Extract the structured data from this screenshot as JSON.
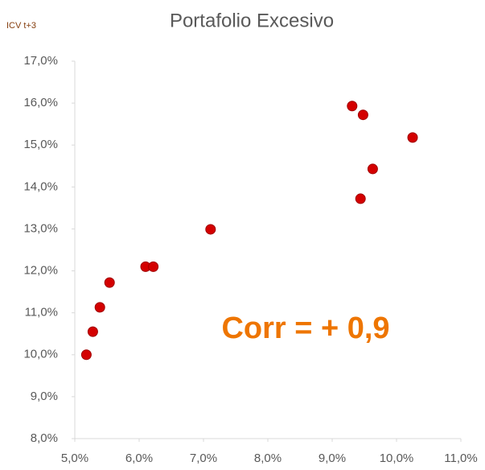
{
  "chart_data": {
    "type": "scatter",
    "title": "Portafolio Excesivo",
    "y_label": "ICV t+3",
    "annotation": "Corr = + 0,9",
    "color": "#d40000",
    "annotation_color": "#ee7500",
    "grid": false,
    "x": [
      5.18,
      5.28,
      5.39,
      5.54,
      6.1,
      6.22,
      7.11,
      9.31,
      9.48,
      10.25,
      9.63,
      9.44
    ],
    "values": [
      10.0,
      10.55,
      11.13,
      11.72,
      12.1,
      12.1,
      12.99,
      15.93,
      15.72,
      15.18,
      14.43,
      13.72
    ],
    "xlim": [
      5,
      11
    ],
    "ylim": [
      8,
      17
    ],
    "xticks": [
      {
        "value": 5,
        "label": "5,0%"
      },
      {
        "value": 6,
        "label": "6,0%"
      },
      {
        "value": 7,
        "label": "7,0%"
      },
      {
        "value": 8,
        "label": "8,0%"
      },
      {
        "value": 9,
        "label": "9,0%"
      },
      {
        "value": 10,
        "label": "10,0%"
      },
      {
        "value": 11,
        "label": "11,0%"
      }
    ],
    "yticks": [
      {
        "value": 8,
        "label": "8,0%"
      },
      {
        "value": 9,
        "label": "9,0%"
      },
      {
        "value": 10,
        "label": "10,0%"
      },
      {
        "value": 11,
        "label": "11,0%"
      },
      {
        "value": 12,
        "label": "12,0%"
      },
      {
        "value": 13,
        "label": "13,0%"
      },
      {
        "value": 14,
        "label": "14,0%"
      },
      {
        "value": 15,
        "label": "15,0%"
      },
      {
        "value": 16,
        "label": "16,0%"
      },
      {
        "value": 17,
        "label": "17,0%"
      }
    ]
  }
}
